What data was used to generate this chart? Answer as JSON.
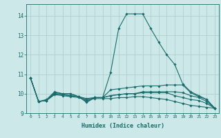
{
  "title": "",
  "xlabel": "Humidex (Indice chaleur)",
  "ylabel": "",
  "background_color": "#cce8e8",
  "grid_color": "#aacccc",
  "line_color": "#1a6b6b",
  "xlim": [
    -0.5,
    23.5
  ],
  "ylim": [
    9.0,
    14.6
  ],
  "yticks": [
    9,
    10,
    11,
    12,
    13,
    14
  ],
  "xticks": [
    0,
    1,
    2,
    3,
    4,
    5,
    6,
    7,
    8,
    9,
    10,
    11,
    12,
    13,
    14,
    15,
    16,
    17,
    18,
    19,
    20,
    21,
    22,
    23
  ],
  "xtick_labels": [
    "0",
    "1",
    "2",
    "3",
    "4",
    "5",
    "6",
    "7",
    "8",
    "9",
    "10",
    "11",
    "12",
    "13",
    "14",
    "15",
    "16",
    "17",
    "18",
    "19",
    "20",
    "21",
    "22",
    "23"
  ],
  "lines": [
    {
      "x": [
        0,
        1,
        2,
        3,
        4,
        5,
        6,
        7,
        8,
        9,
        10,
        11,
        12,
        13,
        14,
        15,
        16,
        17,
        18,
        19,
        20,
        21,
        22,
        23
      ],
      "y": [
        10.8,
        9.6,
        9.7,
        10.1,
        10.0,
        10.0,
        9.85,
        9.55,
        9.8,
        9.8,
        11.1,
        13.35,
        14.1,
        14.1,
        14.1,
        13.35,
        12.65,
        12.0,
        11.5,
        10.5,
        10.1,
        9.9,
        9.7,
        9.25
      ]
    },
    {
      "x": [
        0,
        1,
        2,
        3,
        4,
        5,
        6,
        7,
        8,
        9,
        10,
        11,
        12,
        13,
        14,
        15,
        16,
        17,
        18,
        19,
        20,
        21,
        22,
        23
      ],
      "y": [
        10.8,
        9.6,
        9.65,
        10.05,
        10.0,
        10.0,
        9.85,
        9.6,
        9.8,
        9.8,
        10.2,
        10.25,
        10.3,
        10.35,
        10.4,
        10.4,
        10.4,
        10.45,
        10.45,
        10.45,
        10.05,
        9.85,
        9.7,
        9.25
      ]
    },
    {
      "x": [
        0,
        1,
        2,
        3,
        4,
        5,
        6,
        7,
        8,
        9,
        10,
        11,
        12,
        13,
        14,
        15,
        16,
        17,
        18,
        19,
        20,
        21,
        22,
        23
      ],
      "y": [
        10.8,
        9.6,
        9.65,
        10.0,
        9.95,
        9.9,
        9.85,
        9.75,
        9.8,
        9.8,
        9.9,
        9.95,
        10.0,
        10.0,
        10.1,
        10.1,
        10.1,
        10.1,
        10.1,
        10.05,
        9.9,
        9.8,
        9.6,
        9.25
      ]
    },
    {
      "x": [
        0,
        1,
        2,
        3,
        4,
        5,
        6,
        7,
        8,
        9,
        10,
        11,
        12,
        13,
        14,
        15,
        16,
        17,
        18,
        19,
        20,
        21,
        22,
        23
      ],
      "y": [
        10.8,
        9.6,
        9.65,
        10.0,
        9.95,
        9.9,
        9.85,
        9.7,
        9.8,
        9.8,
        9.9,
        9.95,
        10.0,
        10.0,
        10.05,
        10.05,
        10.05,
        10.05,
        9.9,
        9.8,
        9.7,
        9.65,
        9.5,
        9.25
      ]
    },
    {
      "x": [
        0,
        1,
        2,
        3,
        4,
        5,
        6,
        7,
        8,
        9,
        10,
        11,
        12,
        13,
        14,
        15,
        16,
        17,
        18,
        19,
        20,
        21,
        22,
        23
      ],
      "y": [
        10.8,
        9.6,
        9.65,
        9.95,
        9.9,
        9.85,
        9.8,
        9.65,
        9.75,
        9.75,
        9.75,
        9.8,
        9.8,
        9.85,
        9.85,
        9.8,
        9.75,
        9.7,
        9.6,
        9.5,
        9.4,
        9.35,
        9.3,
        9.25
      ]
    }
  ]
}
